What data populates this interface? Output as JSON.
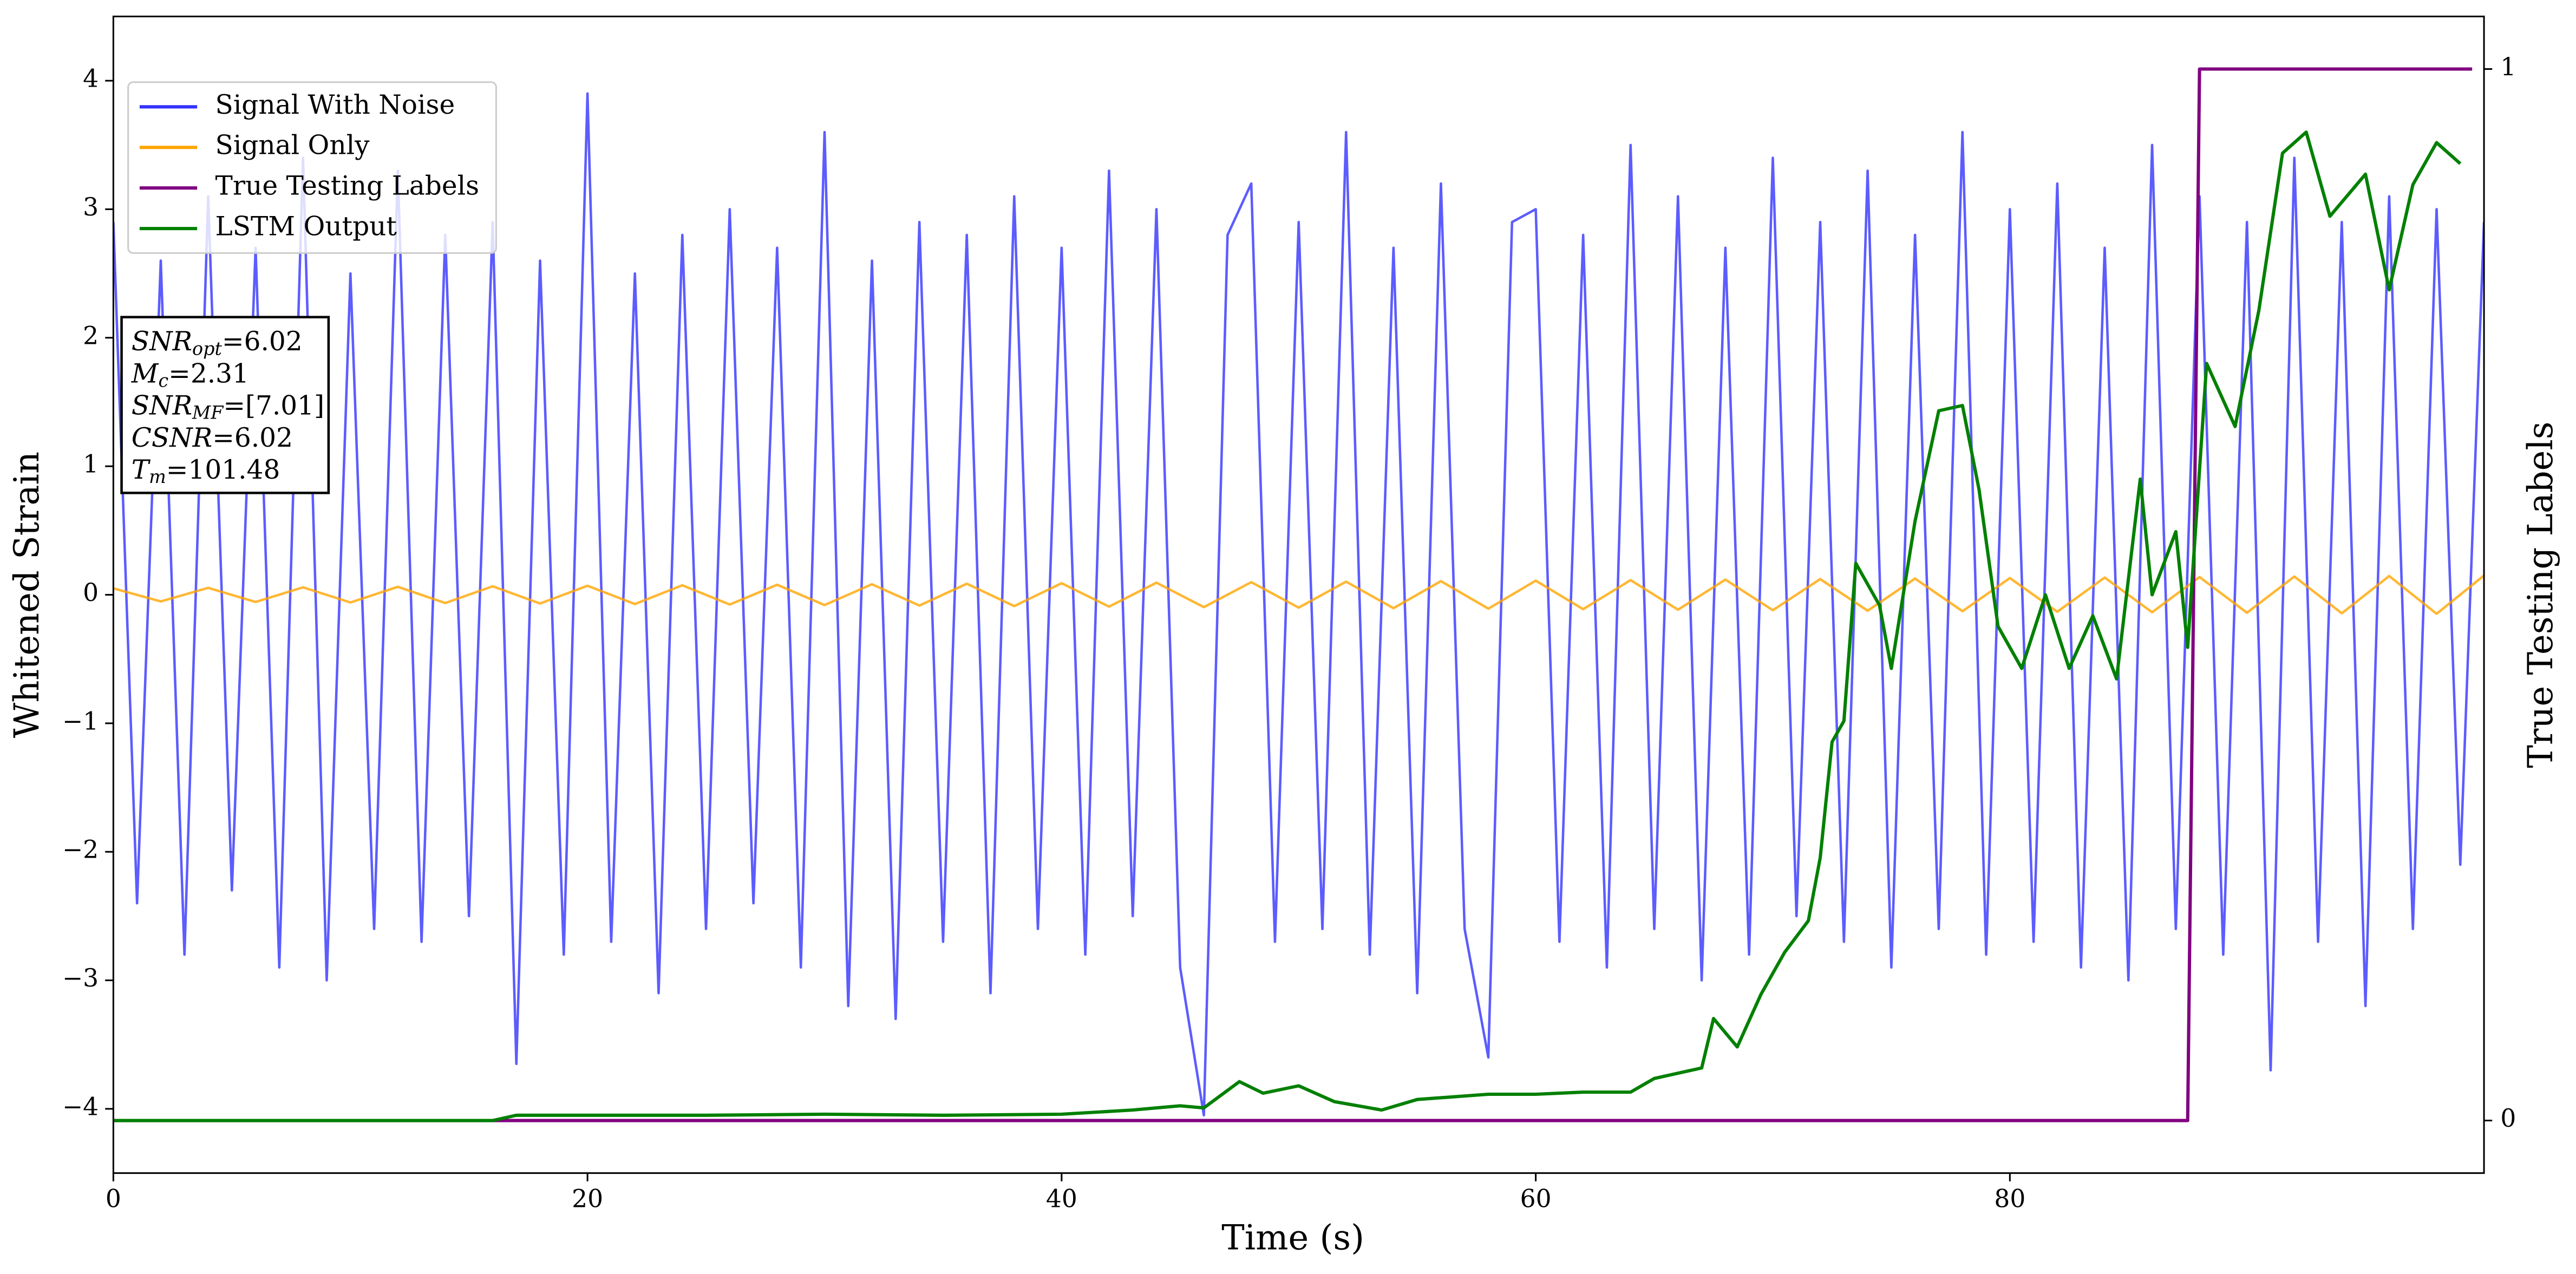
{
  "chart_data": {
    "type": "line",
    "xlabel": "Time (s)",
    "ylabel": "Whitened Strain",
    "y2label": "True Testing Labels",
    "xlim": [
      0,
      100
    ],
    "xticks": [
      0,
      20,
      40,
      60,
      80
    ],
    "ylim": [
      -4.5,
      4.5
    ],
    "yticks": [
      {
        "value": -4,
        "label": "−4"
      },
      {
        "value": -3,
        "label": "−3"
      },
      {
        "value": -2,
        "label": "−2"
      },
      {
        "value": -1,
        "label": "−1"
      },
      0,
      1,
      2,
      3,
      4
    ],
    "y2lim": [
      -0.05,
      1.05
    ],
    "y2ticks": [
      0,
      1
    ],
    "legend": "upper left",
    "series": [
      {
        "name": "Signal With Noise",
        "color": "#3333ff",
        "x": [
          0,
          1,
          2,
          3,
          4,
          5,
          6,
          7,
          8,
          9,
          10,
          11,
          12,
          13,
          14,
          15,
          16,
          17,
          18,
          19,
          20,
          21,
          22,
          23,
          24,
          25,
          26,
          27,
          28,
          29,
          30,
          31,
          32,
          33,
          34,
          35,
          36,
          37,
          38,
          39,
          40,
          41,
          42,
          43,
          44,
          45,
          46,
          47,
          48,
          49,
          50,
          51,
          52,
          53,
          54,
          55,
          56,
          57,
          58,
          59,
          60,
          61,
          62,
          63,
          64,
          65,
          66,
          67,
          68,
          69,
          70,
          71,
          72,
          73,
          74,
          75,
          76,
          77,
          78,
          79,
          80,
          81,
          82,
          83,
          84,
          85,
          86,
          87,
          88,
          89,
          90,
          91,
          92,
          93,
          94,
          95,
          96,
          97,
          98,
          99,
          100
        ],
        "values": [
          2.9,
          -2.4,
          2.6,
          -2.8,
          3.1,
          -2.3,
          2.7,
          -2.9,
          3.4,
          -3.0,
          2.5,
          -2.6,
          3.3,
          -2.7,
          2.8,
          -2.5,
          2.9,
          -3.65,
          2.6,
          -2.8,
          3.9,
          -2.7,
          2.5,
          -3.1,
          2.8,
          -2.6,
          3.0,
          -2.4,
          2.7,
          -2.9,
          3.6,
          -3.2,
          2.6,
          -3.3,
          2.9,
          -2.7,
          2.8,
          -3.1,
          3.1,
          -2.6,
          2.7,
          -2.8,
          3.3,
          -2.5,
          3.0,
          -2.9,
          -4.05,
          2.8,
          3.2,
          -2.7,
          2.9,
          -2.6,
          3.6,
          -2.8,
          2.7,
          -3.1,
          3.2,
          -2.6,
          -3.6,
          2.9,
          3.0,
          -2.7,
          2.8,
          -2.9,
          3.5,
          -2.6,
          3.1,
          -3.0,
          2.7,
          -2.8,
          3.4,
          -2.5,
          2.9,
          -2.7,
          3.3,
          -2.9,
          2.8,
          -2.6,
          3.6,
          -2.8,
          3.0,
          -2.7,
          3.2,
          -2.9,
          2.7,
          -3.0,
          3.5,
          -2.6,
          3.1,
          -2.8,
          2.9,
          -3.7,
          3.4,
          -2.7,
          2.9,
          -3.2,
          3.1,
          -2.6,
          3.0,
          -2.1,
          2.9
        ]
      },
      {
        "name": "Signal Only",
        "color": "#ffa500",
        "x": [
          0,
          2,
          4,
          6,
          8,
          10,
          12,
          14,
          16,
          18,
          20,
          22,
          24,
          26,
          28,
          30,
          32,
          34,
          36,
          38,
          40,
          42,
          44,
          46,
          48,
          50,
          52,
          54,
          56,
          58,
          60,
          62,
          64,
          66,
          68,
          70,
          72,
          74,
          76,
          78,
          80,
          82,
          84,
          86,
          88,
          90,
          92,
          94,
          96,
          98,
          100
        ],
        "values": [
          0.05,
          -0.052,
          0.054,
          -0.056,
          0.058,
          -0.06,
          0.062,
          -0.064,
          0.066,
          -0.068,
          0.07,
          -0.072,
          0.074,
          -0.076,
          0.078,
          -0.08,
          0.082,
          -0.084,
          0.086,
          -0.088,
          0.09,
          -0.092,
          0.094,
          -0.096,
          0.098,
          -0.1,
          0.102,
          -0.104,
          0.106,
          -0.108,
          0.11,
          -0.112,
          0.114,
          -0.116,
          0.118,
          -0.12,
          0.122,
          -0.124,
          0.126,
          -0.128,
          0.13,
          -0.132,
          0.134,
          -0.136,
          0.138,
          -0.14,
          0.142,
          -0.144,
          0.146,
          -0.148,
          0.15
        ]
      },
      {
        "name": "True Testing Labels",
        "color": "#800080",
        "axis": "y2",
        "x": [
          0,
          87.5,
          88,
          99.5
        ],
        "values": [
          0,
          0,
          1,
          1
        ]
      },
      {
        "name": "LSTM Output",
        "color": "#008000",
        "axis": "y2",
        "x": [
          0,
          16,
          17,
          20,
          25,
          30,
          35,
          40,
          43,
          45,
          46,
          47.5,
          48.5,
          50,
          51.5,
          53.5,
          55,
          58,
          60,
          62,
          64,
          65,
          67,
          67.5,
          68.5,
          69.5,
          70.5,
          71.5,
          72,
          72.5,
          73,
          73.5,
          74.5,
          75,
          76,
          77,
          78,
          78.7,
          79.5,
          80.5,
          81.5,
          82.5,
          83.5,
          84.5,
          85.5,
          86,
          87,
          87.5,
          88.3,
          89.5,
          90.5,
          91.5,
          92.5,
          93.5,
          95,
          96,
          97,
          98,
          99
        ],
        "values": [
          0,
          0,
          0.005,
          0.005,
          0.005,
          0.006,
          0.005,
          0.006,
          0.01,
          0.014,
          0.012,
          0.037,
          0.026,
          0.033,
          0.018,
          0.01,
          0.02,
          0.025,
          0.025,
          0.027,
          0.027,
          0.04,
          0.05,
          0.097,
          0.07,
          0.12,
          0.16,
          0.19,
          0.25,
          0.36,
          0.38,
          0.53,
          0.49,
          0.43,
          0.57,
          0.675,
          0.68,
          0.6,
          0.47,
          0.43,
          0.5,
          0.43,
          0.48,
          0.42,
          0.61,
          0.5,
          0.56,
          0.45,
          0.72,
          0.66,
          0.77,
          0.92,
          0.94,
          0.86,
          0.9,
          0.79,
          0.89,
          0.93,
          0.91
        ]
      }
    ],
    "annotation_lines": [
      {
        "main": "SNR",
        "sub": "opt",
        "text": "=6.02"
      },
      {
        "main": "M",
        "sub": "c",
        "text": "=2.31"
      },
      {
        "main": "SNR",
        "sub": "MF",
        "text": "=[7.01]"
      },
      {
        "main": "CSNR",
        "text": "=6.02"
      },
      {
        "main": "T",
        "sub": "m",
        "text": "=101.48"
      }
    ]
  }
}
